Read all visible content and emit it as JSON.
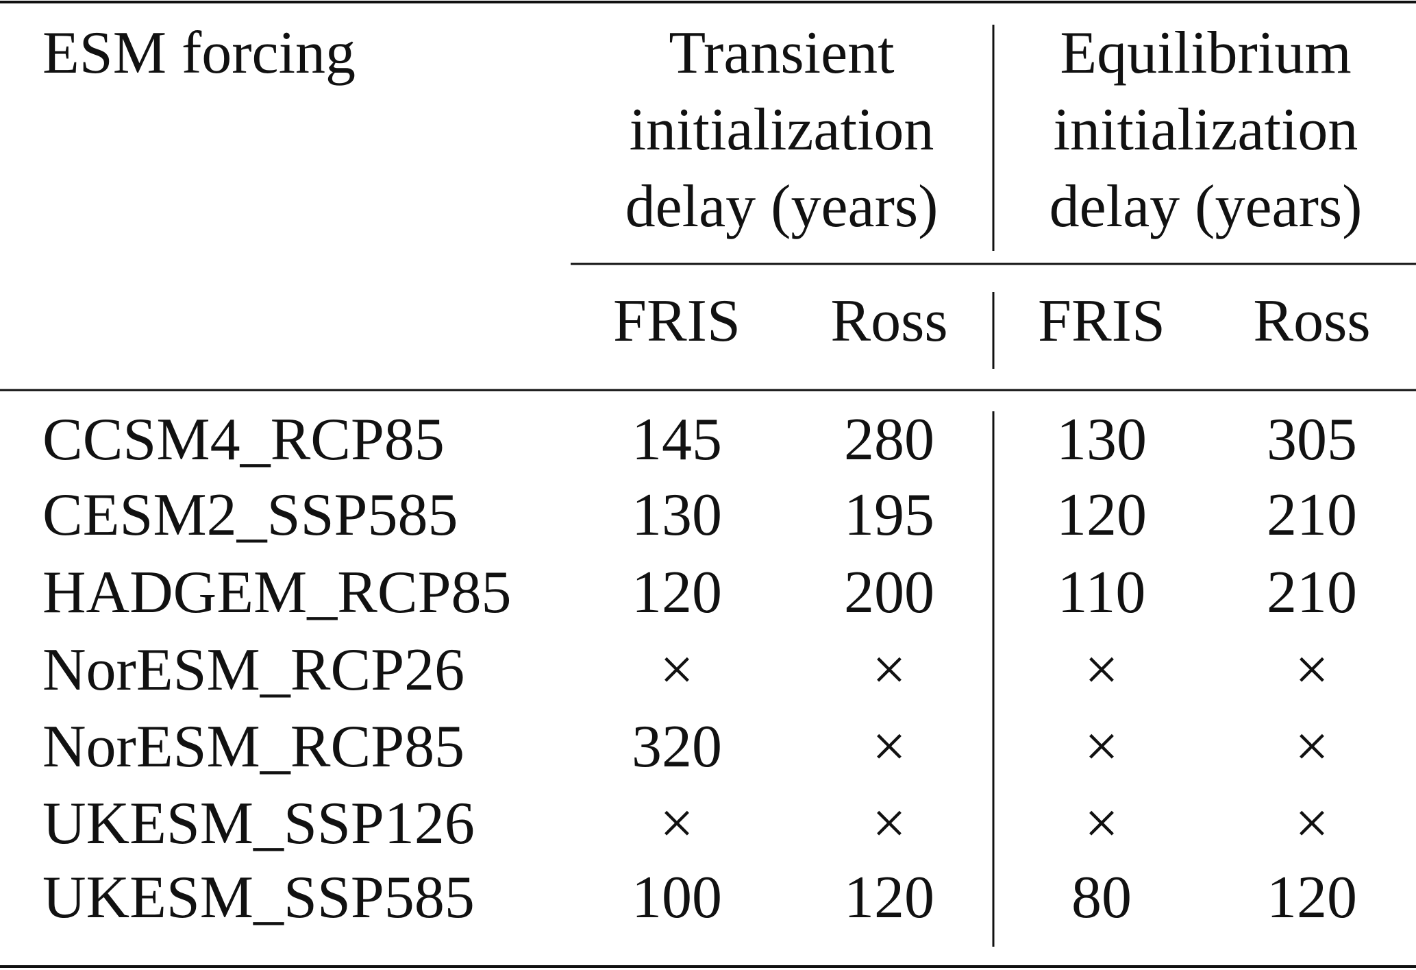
{
  "table": {
    "header": {
      "stub": "ESM forcing",
      "groups": [
        {
          "lines": [
            "Transient",
            "initialization",
            "delay (years)"
          ],
          "columns": [
            "FRIS",
            "Ross"
          ]
        },
        {
          "lines": [
            "Equilibrium",
            "initialization",
            "delay (years)"
          ],
          "columns": [
            "FRIS",
            "Ross"
          ]
        }
      ]
    },
    "rows": [
      [
        "CCSM4_RCP85",
        145,
        280,
        130,
        305
      ],
      [
        "CESM2_SSP585",
        130,
        195,
        120,
        210
      ],
      [
        "HADGEM_RCP85",
        120,
        200,
        110,
        210
      ],
      [
        "NorESM_RCP26",
        "×",
        "×",
        "×",
        "×"
      ],
      [
        "NorESM_RCP85",
        320,
        "×",
        "×",
        "×"
      ],
      [
        "UKESM_SSP126",
        "×",
        "×",
        "×",
        "×"
      ],
      [
        "UKESM_SSP585",
        100,
        120,
        80,
        120
      ]
    ]
  }
}
